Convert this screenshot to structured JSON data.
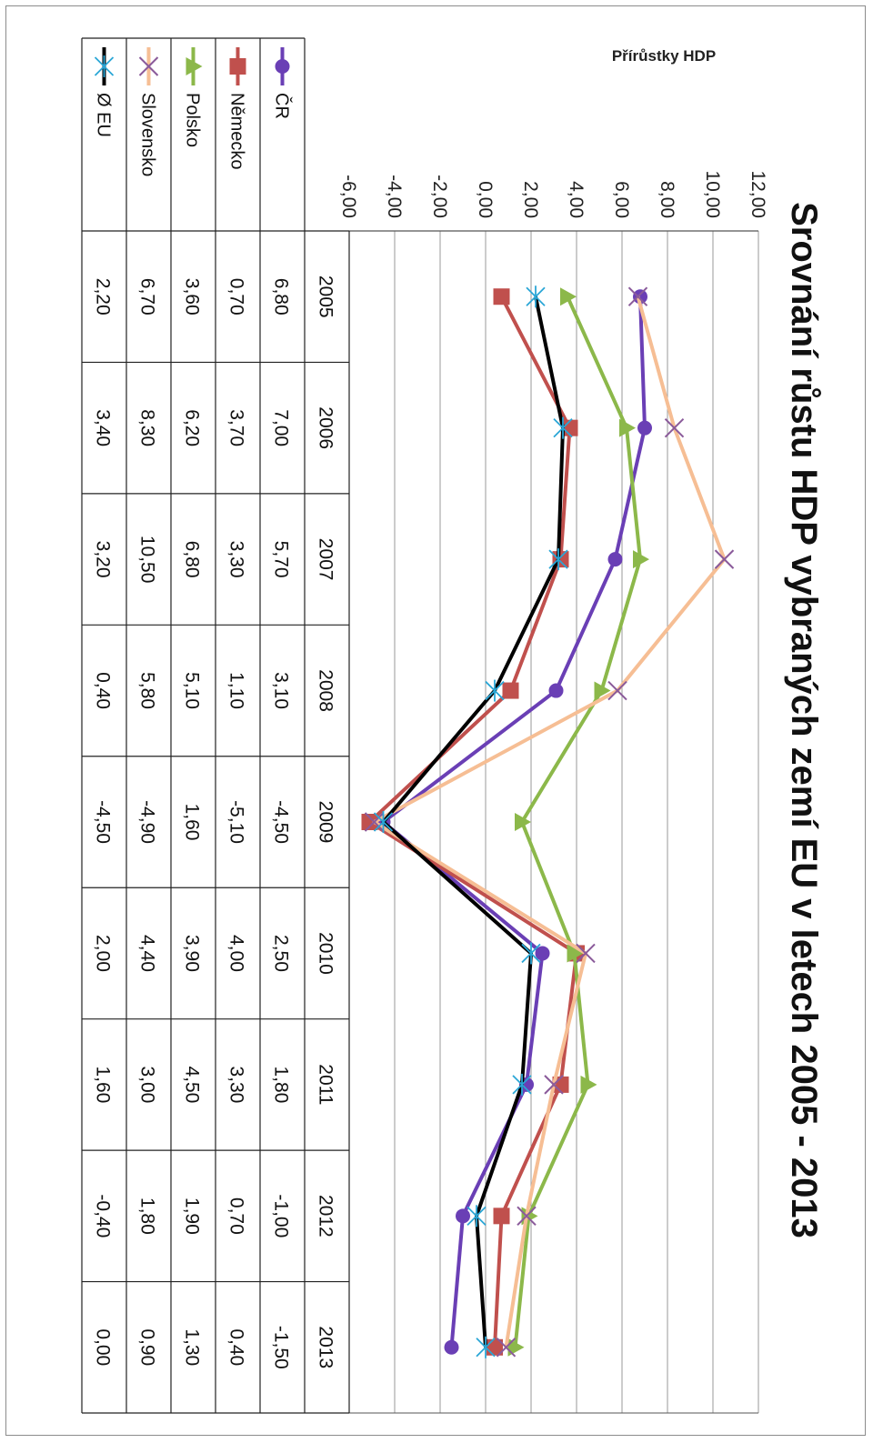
{
  "chart_data": {
    "type": "line",
    "title": "Srovnání růstu HDP vybraných zemí EU v letech 2005 - 2013",
    "ylabel": "Přírůstky HDP",
    "xlabel": "",
    "ylim": [
      -6,
      12
    ],
    "yticks": [
      "-6,00",
      "-4,00",
      "-2,00",
      "0,00",
      "2,00",
      "4,00",
      "6,00",
      "8,00",
      "10,00",
      "12,00"
    ],
    "grid": true,
    "legend_position": "data-table",
    "categories": [
      "2005",
      "2006",
      "2007",
      "2008",
      "2009",
      "2010",
      "2011",
      "2012",
      "2013"
    ],
    "series": [
      {
        "name": "ČR",
        "color": "#6a3fb5",
        "marker": "circle",
        "values": [
          6.8,
          7.0,
          5.7,
          3.1,
          -4.5,
          2.5,
          1.8,
          -1.0,
          -1.5
        ],
        "labels": [
          "6,80",
          "7,00",
          "5,70",
          "3,10",
          "-4,50",
          "2,50",
          "1,80",
          "-1,00",
          "-1,50"
        ]
      },
      {
        "name": "Německo",
        "color": "#c0504d",
        "marker": "square",
        "values": [
          0.7,
          3.7,
          3.3,
          1.1,
          -5.1,
          4.0,
          3.3,
          0.7,
          0.4
        ],
        "labels": [
          "0,70",
          "3,70",
          "3,30",
          "1,10",
          "-5,10",
          "4,00",
          "3,30",
          "0,70",
          "0,40"
        ]
      },
      {
        "name": "Polsko",
        "color": "#8cb84a",
        "marker": "triangle",
        "values": [
          3.6,
          6.2,
          6.8,
          5.1,
          1.6,
          3.9,
          4.5,
          1.9,
          1.3
        ],
        "labels": [
          "3,60",
          "6,20",
          "6,80",
          "5,10",
          "1,60",
          "3,90",
          "4,50",
          "1,90",
          "1,30"
        ]
      },
      {
        "name": "Slovensko",
        "color": "#f6be94",
        "marker": "x",
        "marker_color": "#8a5a9a",
        "values": [
          6.7,
          8.3,
          10.5,
          5.8,
          -4.9,
          4.4,
          3.0,
          1.8,
          0.9
        ],
        "labels": [
          "6,70",
          "8,30",
          "10,50",
          "5,80",
          "-4,90",
          "4,40",
          "3,00",
          "1,80",
          "0,90"
        ]
      },
      {
        "name": "Ø EU",
        "color": "#000000",
        "marker": "star",
        "marker_color": "#2aa6d6",
        "values": [
          2.2,
          3.4,
          3.2,
          0.4,
          -4.5,
          2.0,
          1.6,
          -0.4,
          0.0
        ],
        "labels": [
          "2,20",
          "3,40",
          "3,20",
          "0,40",
          "-4,50",
          "2,00",
          "1,60",
          "-0,40",
          "0,00"
        ]
      }
    ]
  }
}
